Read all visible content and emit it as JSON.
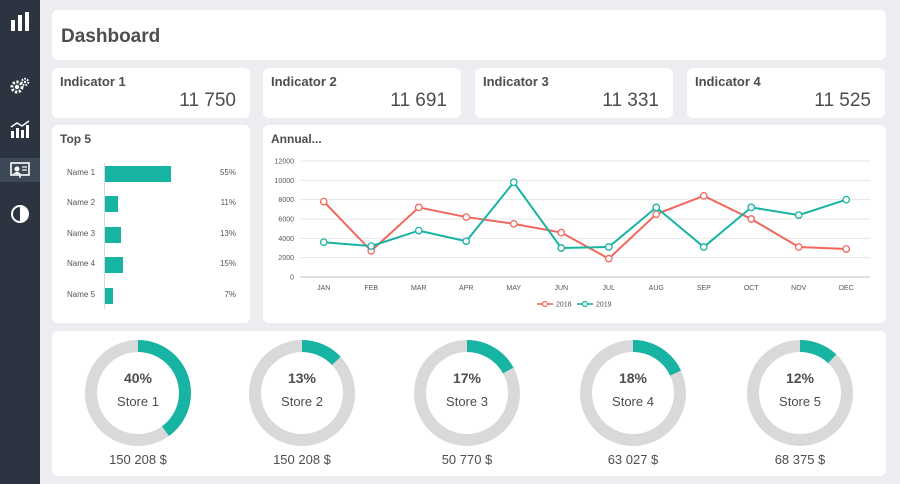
{
  "sidebar": {
    "items": [
      {
        "icon": "bar-chart-logo-icon"
      },
      {
        "icon": "gears-icon"
      },
      {
        "icon": "analytics-chart-icon"
      },
      {
        "icon": "presentation-board-icon",
        "active": true
      },
      {
        "icon": "contrast-icon"
      }
    ]
  },
  "header": {
    "title": "Dashboard"
  },
  "indicators": [
    {
      "label": "Indicator 1",
      "value": "11 750"
    },
    {
      "label": "Indicator 2",
      "value": "11 691"
    },
    {
      "label": "Indicator 3",
      "value": "11 331"
    },
    {
      "label": "Indicator 4",
      "value": "11 525"
    }
  ],
  "colors": {
    "teal": "#17b3a3",
    "red": "#f0685d",
    "ring": "#d9d9d9"
  },
  "top5": {
    "title": "Top 5",
    "chart_data": {
      "type": "bar",
      "orientation": "horizontal",
      "categories": [
        "Name 1",
        "Name 2",
        "Name 3",
        "Name 4",
        "Name 5"
      ],
      "values": [
        55,
        11,
        13,
        15,
        7
      ],
      "labels": [
        "55%",
        "11%",
        "13%",
        "15%",
        "7%"
      ],
      "color": "#17b3a3"
    }
  },
  "annual": {
    "title": "Annual...",
    "chart_data": {
      "type": "line",
      "categories": [
        "JAN",
        "FEB",
        "MAR",
        "APR",
        "MAY",
        "JUN",
        "JUL",
        "AUG",
        "SEP",
        "OCT",
        "NOV",
        "DEC"
      ],
      "series": [
        {
          "name": "2018",
          "color": "#f0685d",
          "values": [
            7800,
            2700,
            7200,
            6200,
            5500,
            4600,
            1900,
            6500,
            8400,
            6000,
            3100,
            2900
          ]
        },
        {
          "name": "2019",
          "color": "#17b3a3",
          "values": [
            3600,
            3200,
            4800,
            3700,
            9800,
            3000,
            3100,
            7200,
            3100,
            7200,
            6400,
            8000
          ]
        }
      ],
      "yticks": [
        "0",
        "2000",
        "4000",
        "6000",
        "8000",
        "10000",
        "12000"
      ],
      "ylim": [
        0,
        12000
      ],
      "legend_position": "bottom",
      "grid": "horizontal"
    }
  },
  "stores": [
    {
      "pct_label": "40%",
      "pct": 40,
      "name": "Store 1",
      "amount": "150 208 $"
    },
    {
      "pct_label": "13%",
      "pct": 13,
      "name": "Store 2",
      "amount": "150 208 $"
    },
    {
      "pct_label": "17%",
      "pct": 17,
      "name": "Store 3",
      "amount": "50 770 $"
    },
    {
      "pct_label": "18%",
      "pct": 18,
      "name": "Store 4",
      "amount": "63 027 $"
    },
    {
      "pct_label": "12%",
      "pct": 12,
      "name": "Store 5",
      "amount": "68 375 $"
    }
  ]
}
